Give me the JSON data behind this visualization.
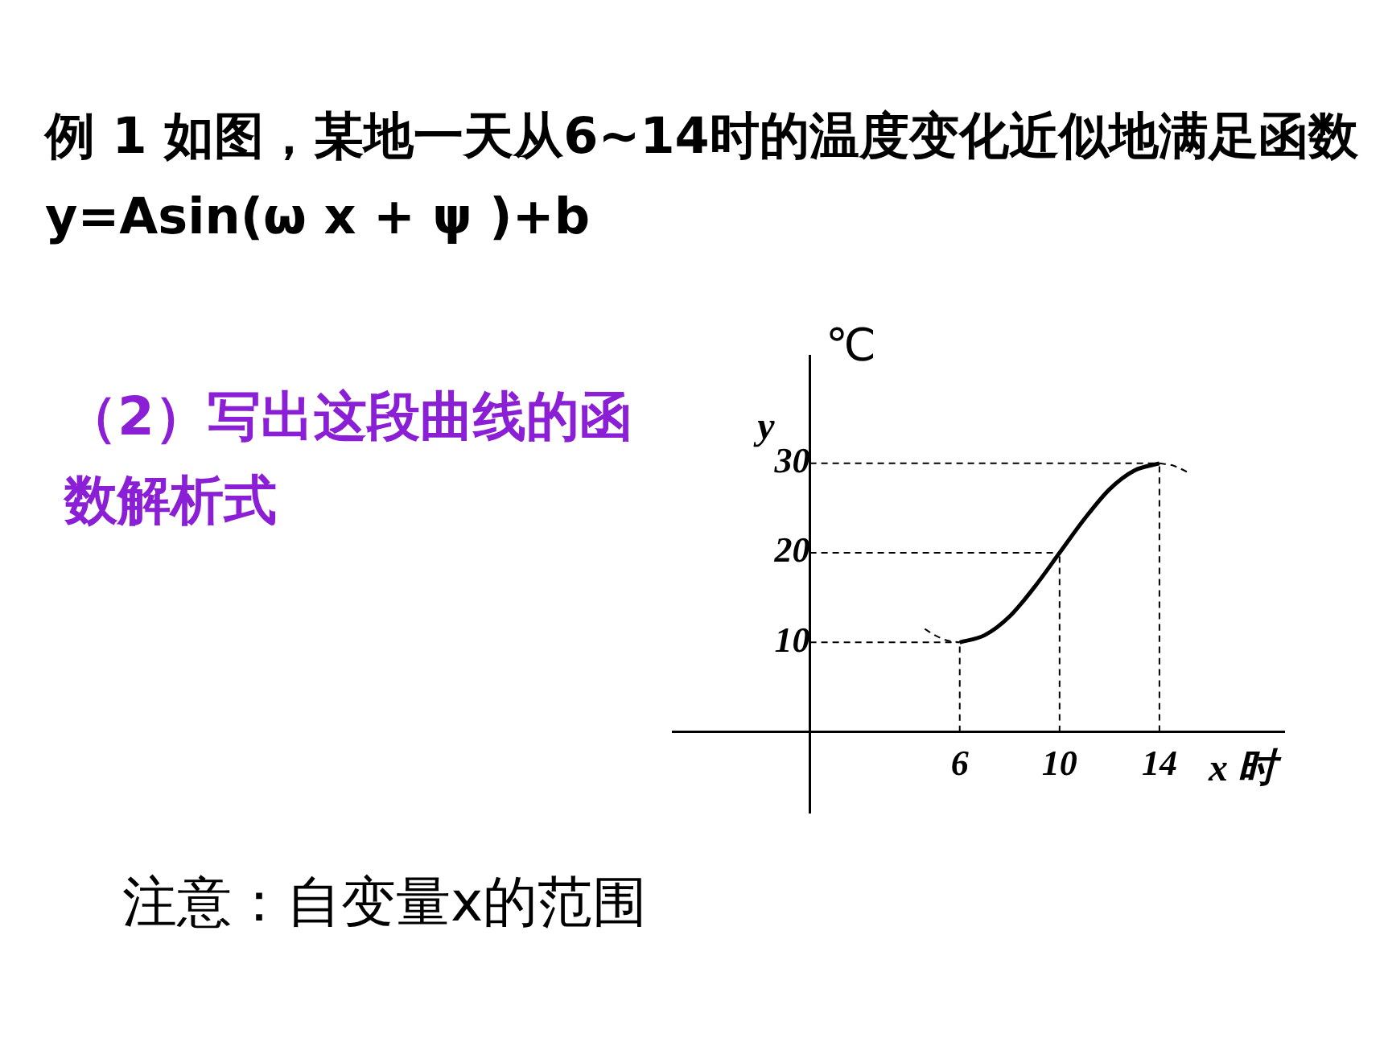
{
  "chart_data": {
    "type": "line",
    "title": "例 1 如图，某地一天从6~14时的温度变化近似地满足函数 y=Asin(ω x + ψ )+b",
    "xlabel": "x 时",
    "ylabel": "y",
    "annotations": [
      "（2）写出这段曲线的函数解析式",
      "注意：自变量x的范围",
      "℃"
    ],
    "series": [
      {
        "color": "#000000",
        "line_style": "solid",
        "x": [
          6,
          7,
          8,
          9,
          10,
          11,
          12,
          13,
          14
        ],
        "values": [
          10,
          10.8,
          12.9,
          16.2,
          20,
          23.8,
          27.1,
          29.2,
          30
        ]
      },
      {
        "color": "#000000",
        "line_style": "dashed",
        "x": [
          4.6,
          5,
          5.5,
          6
        ],
        "values": [
          11.5,
          10.8,
          10.2,
          10
        ]
      },
      {
        "color": "#000000",
        "line_style": "dashed",
        "x": [
          14,
          14.5,
          15,
          15.2
        ],
        "values": [
          30,
          29.8,
          29.2,
          28.9
        ]
      },
      {
        "color": "#000000",
        "line_style": "dashed",
        "x": [
          0,
          6
        ],
        "values": [
          10,
          10
        ]
      },
      {
        "color": "#000000",
        "line_style": "dashed",
        "x": [
          0,
          10
        ],
        "values": [
          20,
          20
        ]
      },
      {
        "color": "#000000",
        "line_style": "dashed",
        "x": [
          0,
          14
        ],
        "values": [
          30,
          30
        ]
      },
      {
        "color": "#000000",
        "line_style": "dashed",
        "x": [
          6,
          6
        ],
        "values": [
          0,
          10
        ]
      },
      {
        "color": "#000000",
        "line_style": "dashed",
        "x": [
          10,
          10
        ],
        "values": [
          0,
          20
        ]
      },
      {
        "color": "#000000",
        "line_style": "dashed",
        "x": [
          14,
          14
        ],
        "values": [
          0,
          30
        ]
      }
    ],
    "xlim": [
      -5.5,
      19
    ],
    "ylim": [
      -9,
      42
    ],
    "xticks": [
      6,
      10,
      14
    ],
    "yticks": [
      10,
      20,
      30
    ],
    "grid": false,
    "legend": false,
    "marker": "none"
  }
}
